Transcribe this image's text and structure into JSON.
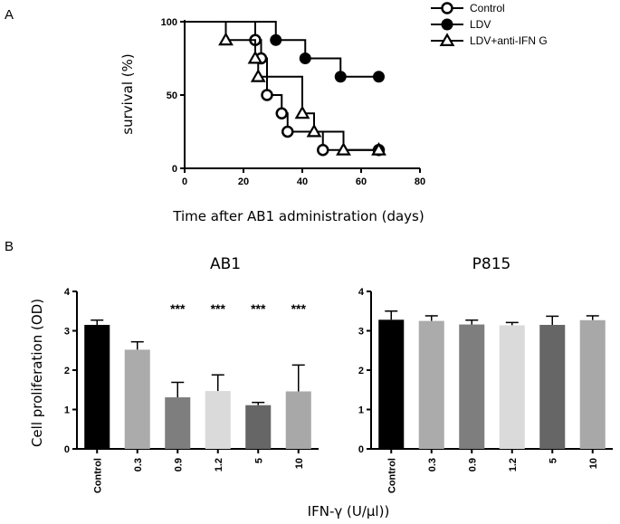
{
  "chart_data": [
    {
      "type": "line",
      "subtype": "kaplan-meier",
      "panel_label": "A",
      "xlabel": "Time after AB1 administration  (days)",
      "ylabel": "survival (%)",
      "xlim": [
        0,
        80
      ],
      "ylim": [
        0,
        100
      ],
      "xticks": [
        0,
        20,
        40,
        60,
        80
      ],
      "yticks": [
        0,
        50,
        100
      ],
      "legend_position": "top-right",
      "series": [
        {
          "name": "Control",
          "marker": "open-circle",
          "steps": [
            [
              0,
              100
            ],
            [
              24,
              87.5
            ],
            [
              26,
              75
            ],
            [
              28,
              50
            ],
            [
              33,
              37.5
            ],
            [
              35,
              25
            ],
            [
              47,
              12.5
            ],
            [
              66,
              12.5
            ]
          ],
          "markers": [
            [
              24,
              87.5
            ],
            [
              26,
              75
            ],
            [
              28,
              50
            ],
            [
              33,
              37.5
            ],
            [
              35,
              25
            ],
            [
              47,
              12.5
            ],
            [
              66,
              12.5
            ]
          ]
        },
        {
          "name": "LDV",
          "marker": "filled-circle",
          "steps": [
            [
              0,
              100
            ],
            [
              31,
              87.5
            ],
            [
              41,
              75
            ],
            [
              53,
              62.5
            ],
            [
              66,
              62.5
            ]
          ],
          "markers": [
            [
              31,
              87.5
            ],
            [
              41,
              75
            ],
            [
              53,
              62.5
            ],
            [
              66,
              62.5
            ]
          ]
        },
        {
          "name": "LDV+anti-IFN G",
          "marker": "open-triangle",
          "steps": [
            [
              0,
              100
            ],
            [
              14,
              87.5
            ],
            [
              24,
              75
            ],
            [
              25,
              62.5
            ],
            [
              40,
              37.5
            ],
            [
              44,
              25
            ],
            [
              54,
              12.5
            ],
            [
              66,
              12.5
            ]
          ],
          "markers": [
            [
              14,
              87.5
            ],
            [
              24,
              75
            ],
            [
              25,
              62.5
            ],
            [
              40,
              37.5
            ],
            [
              44,
              25
            ],
            [
              54,
              12.5
            ],
            [
              66,
              12.5
            ]
          ]
        }
      ]
    },
    {
      "type": "bar",
      "panel_label": "B",
      "title": "AB1",
      "ylabel": "Cell proliferation (OD)",
      "ylim": [
        0,
        4
      ],
      "yticks": [
        0,
        1,
        2,
        3,
        4
      ],
      "categories": [
        "Control",
        "0.3",
        "0.9",
        "1.2",
        "5",
        "10"
      ],
      "values": [
        3.15,
        2.52,
        1.31,
        1.47,
        1.11,
        1.46
      ],
      "errors": [
        0.12,
        0.2,
        0.38,
        0.41,
        0.07,
        0.67
      ],
      "colors": [
        "#000000",
        "#ababab",
        "#7e7e7e",
        "#dadada",
        "#666666",
        "#a8a8a8"
      ],
      "annotations": [
        "",
        "",
        "***",
        "***",
        "***",
        "***"
      ]
    },
    {
      "type": "bar",
      "title": "P815",
      "ylim": [
        0,
        4
      ],
      "yticks": [
        0,
        1,
        2,
        3,
        4
      ],
      "categories": [
        "Control",
        "0.3",
        "0.9",
        "1.2",
        "5",
        "10"
      ],
      "values": [
        3.28,
        3.25,
        3.16,
        3.14,
        3.15,
        3.27
      ],
      "errors": [
        0.22,
        0.13,
        0.11,
        0.07,
        0.22,
        0.11
      ],
      "colors": [
        "#000000",
        "#ababab",
        "#7e7e7e",
        "#dadada",
        "#666666",
        "#a8a8a8"
      ],
      "annotations": [
        "",
        "",
        "",
        "",
        "",
        ""
      ]
    }
  ],
  "shared_xlabel": "IFN-γ  (U/μl))"
}
